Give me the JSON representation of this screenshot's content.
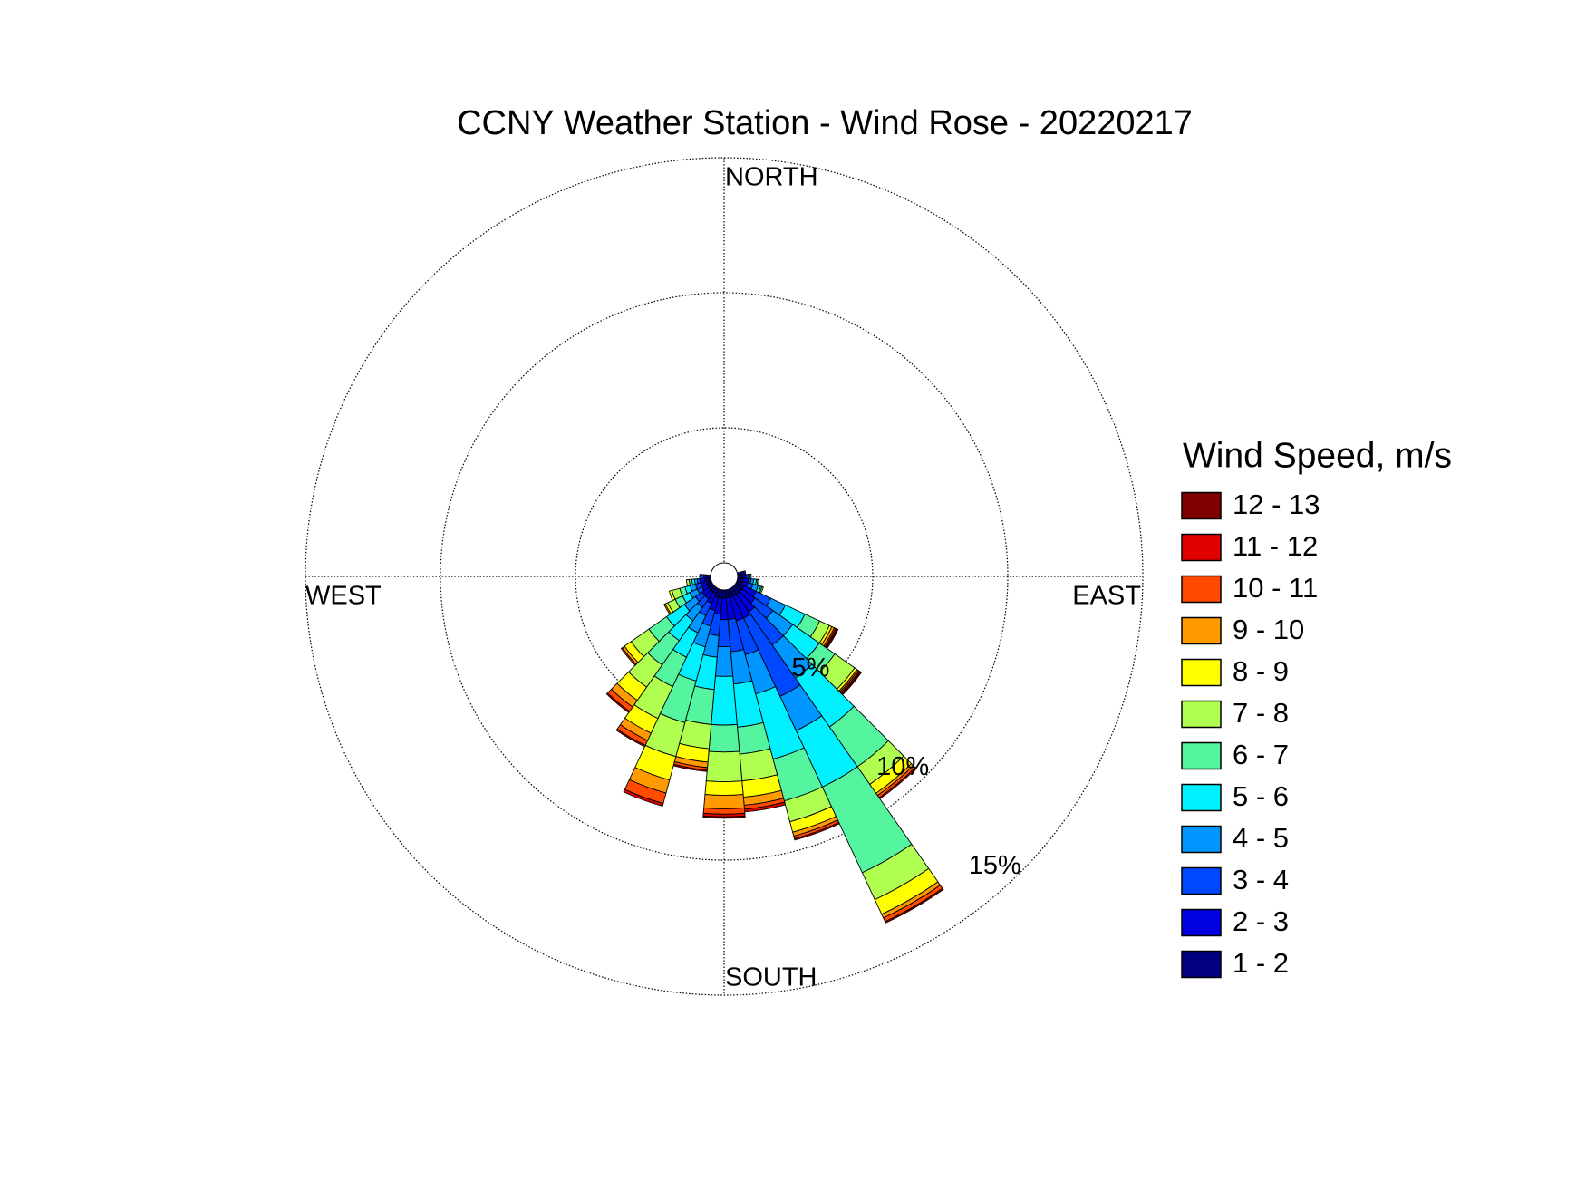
{
  "chart_data": {
    "type": "windrose",
    "title": "CCNY Weather Station - Wind Rose - 20220217",
    "legend_title": "Wind Speed, m/s",
    "directions": {
      "north": "NORTH",
      "east": "EAST",
      "south": "SOUTH",
      "west": "WEST"
    },
    "rlim": [
      0,
      15
    ],
    "rticks": [
      {
        "value": 5,
        "label": "5%"
      },
      {
        "value": 10,
        "label": "10%"
      },
      {
        "value": 15,
        "label": "15%"
      }
    ],
    "grid": true,
    "legend": "right",
    "series": [
      {
        "name": "1 - 2",
        "color": "#000080",
        "values": [
          0,
          0,
          0,
          0,
          0,
          0,
          0,
          0,
          0.15,
          0.2,
          0.2,
          0.2,
          0.3,
          0.3,
          0.3,
          0.3,
          0.3,
          0.3,
          0.3,
          0.3,
          0.3,
          0.2,
          0.2,
          0.2,
          0.2,
          0.2,
          0.2,
          0.15,
          0,
          0,
          0,
          0,
          0,
          0,
          0,
          0
        ]
      },
      {
        "name": "2 - 3",
        "color": "#0000e0",
        "values": [
          0,
          0,
          0,
          0,
          0,
          0,
          0,
          0,
          0.1,
          0.1,
          0.2,
          0.2,
          0.5,
          0.6,
          0.8,
          0.9,
          0.9,
          0.8,
          0.8,
          0.6,
          0.5,
          0.4,
          0.3,
          0.3,
          0.2,
          0.2,
          0.2,
          0.1,
          0,
          0,
          0,
          0,
          0,
          0,
          0,
          0
        ]
      },
      {
        "name": "3 - 4",
        "color": "#0048ff",
        "values": [
          0,
          0,
          0,
          0,
          0,
          0,
          0,
          0,
          0.05,
          0.1,
          0.1,
          0.2,
          0.6,
          0.8,
          1.5,
          3.2,
          1.3,
          1.2,
          1.0,
          0.8,
          0.6,
          0.5,
          0.4,
          0.3,
          0.2,
          0.2,
          0.1,
          0.1,
          0,
          0,
          0,
          0,
          0,
          0,
          0,
          0
        ]
      },
      {
        "name": "4 - 5",
        "color": "#0096ff",
        "values": [
          0,
          0,
          0,
          0,
          0,
          0,
          0,
          0,
          0,
          0.05,
          0.1,
          0.2,
          0.6,
          0.9,
          1.5,
          1.4,
          1.5,
          1.2,
          1.1,
          0.8,
          0.8,
          0.7,
          0.6,
          0.5,
          0.3,
          0.2,
          0.1,
          0.05,
          0,
          0,
          0,
          0,
          0,
          0,
          0,
          0
        ]
      },
      {
        "name": "5 - 6",
        "color": "#00f0ff",
        "values": [
          0,
          0,
          0,
          0,
          0,
          0,
          0,
          0,
          0,
          0.05,
          0.1,
          0.1,
          0.8,
          1.2,
          2.2,
          2.3,
          2.5,
          1.6,
          1.8,
          1.2,
          1.3,
          1.0,
          0.9,
          0.8,
          0.3,
          0.2,
          0.1,
          0,
          0,
          0,
          0,
          0,
          0,
          0,
          0,
          0
        ]
      },
      {
        "name": "6 - 7",
        "color": "#55f5a0",
        "values": [
          0,
          0,
          0,
          0,
          0,
          0,
          0,
          0,
          0,
          0,
          0.05,
          0.05,
          0.6,
          0.7,
          1.8,
          3.5,
          1.6,
          1.0,
          1.0,
          1.3,
          1.6,
          1.2,
          1.1,
          0.8,
          0.3,
          0.2,
          0.1,
          0,
          0,
          0,
          0,
          0,
          0,
          0,
          0,
          0
        ]
      },
      {
        "name": "7 - 8",
        "color": "#b0ff50",
        "values": [
          0,
          0,
          0,
          0,
          0,
          0,
          0,
          0,
          0,
          0,
          0.05,
          0.05,
          0.4,
          0.9,
          0.8,
          1.1,
          0.8,
          1.0,
          1.1,
          0.9,
          1.3,
          1.3,
          1.0,
          0.8,
          0.3,
          0.3,
          0.1,
          0,
          0,
          0,
          0,
          0,
          0,
          0,
          0,
          0
        ]
      },
      {
        "name": "8 - 9",
        "color": "#ffff00",
        "values": [
          0,
          0,
          0,
          0,
          0,
          0,
          0,
          0,
          0,
          0,
          0,
          0,
          0.1,
          0.1,
          0.4,
          0.6,
          0.4,
          0.6,
          0.5,
          0.5,
          0.9,
          0.6,
          0.6,
          0.3,
          0.1,
          0.1,
          0,
          0,
          0,
          0,
          0,
          0,
          0,
          0,
          0,
          0
        ]
      },
      {
        "name": "9 - 10",
        "color": "#ff9a00",
        "values": [
          0,
          0,
          0,
          0,
          0,
          0,
          0,
          0,
          0,
          0,
          0,
          0,
          0.1,
          0.05,
          0.1,
          0.15,
          0.15,
          0.3,
          0.5,
          0.2,
          0.5,
          0.3,
          0.3,
          0.1,
          0.05,
          0,
          0,
          0,
          0,
          0,
          0,
          0,
          0,
          0,
          0,
          0
        ]
      },
      {
        "name": "10 - 11",
        "color": "#ff4a00",
        "values": [
          0,
          0,
          0,
          0,
          0,
          0,
          0,
          0,
          0,
          0,
          0,
          0,
          0.05,
          0.05,
          0.1,
          0.15,
          0.1,
          0.15,
          0.2,
          0.1,
          0.4,
          0.2,
          0.2,
          0.05,
          0,
          0,
          0,
          0,
          0,
          0,
          0,
          0,
          0,
          0,
          0,
          0
        ]
      },
      {
        "name": "11 - 12",
        "color": "#e00000",
        "values": [
          0,
          0,
          0,
          0,
          0,
          0,
          0,
          0,
          0,
          0,
          0,
          0,
          0.05,
          0.05,
          0.05,
          0.05,
          0.05,
          0.1,
          0.1,
          0.05,
          0.1,
          0.05,
          0.05,
          0,
          0,
          0,
          0,
          0,
          0,
          0,
          0,
          0,
          0,
          0,
          0,
          0
        ]
      },
      {
        "name": "12 - 13",
        "color": "#800000",
        "values": [
          0,
          0,
          0,
          0,
          0,
          0,
          0,
          0,
          0,
          0,
          0,
          0,
          0.05,
          0.05,
          0,
          0,
          0,
          0,
          0.05,
          0,
          0,
          0,
          0,
          0,
          0,
          0,
          0,
          0,
          0,
          0,
          0,
          0,
          0,
          0,
          0,
          0
        ]
      }
    ]
  }
}
